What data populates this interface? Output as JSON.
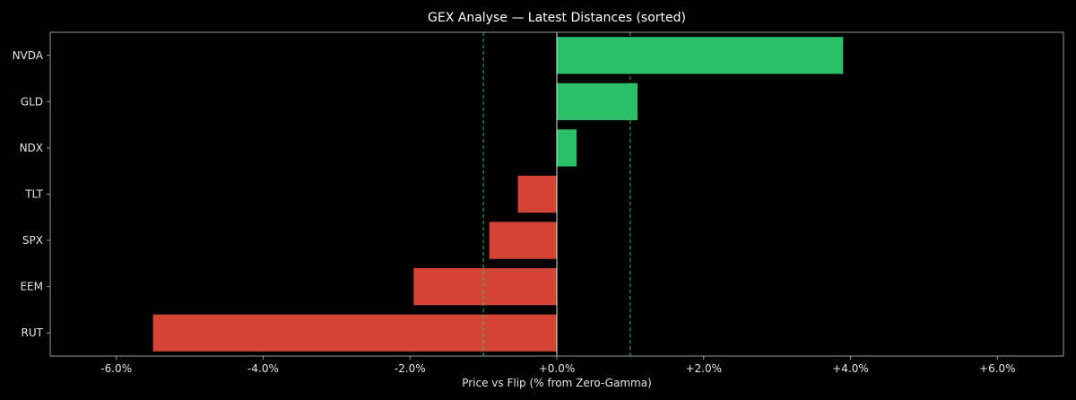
{
  "chart_data": {
    "type": "bar",
    "orientation": "horizontal",
    "title": "GEX Analyse — Latest Distances (sorted)",
    "xlabel": "Price vs Flip (% from Zero-Gamma)",
    "ylabel": "",
    "xlim": [
      -6.9,
      6.9
    ],
    "xticks": [
      -6,
      -4,
      -2,
      0,
      2,
      4,
      6
    ],
    "xtick_labels": [
      "-6.0%",
      "-4.0%",
      "-2.0%",
      "+0.0%",
      "+2.0%",
      "+4.0%",
      "+6.0%"
    ],
    "categories": [
      "NVDA",
      "GLD",
      "NDX",
      "TLT",
      "SPX",
      "EEM",
      "RUT"
    ],
    "values": [
      3.9,
      1.1,
      0.27,
      -0.53,
      -0.92,
      -1.95,
      -5.5
    ],
    "reference_lines": [
      -1.0,
      1.0
    ],
    "zero_line": 0,
    "grid": false,
    "colors": {
      "positive": "#2bbf6a",
      "negative": "#d44538",
      "reference": "#2bbf6a",
      "zero": "#e6e6e6",
      "axes": "#9a9a9a",
      "background": "#000000"
    }
  }
}
